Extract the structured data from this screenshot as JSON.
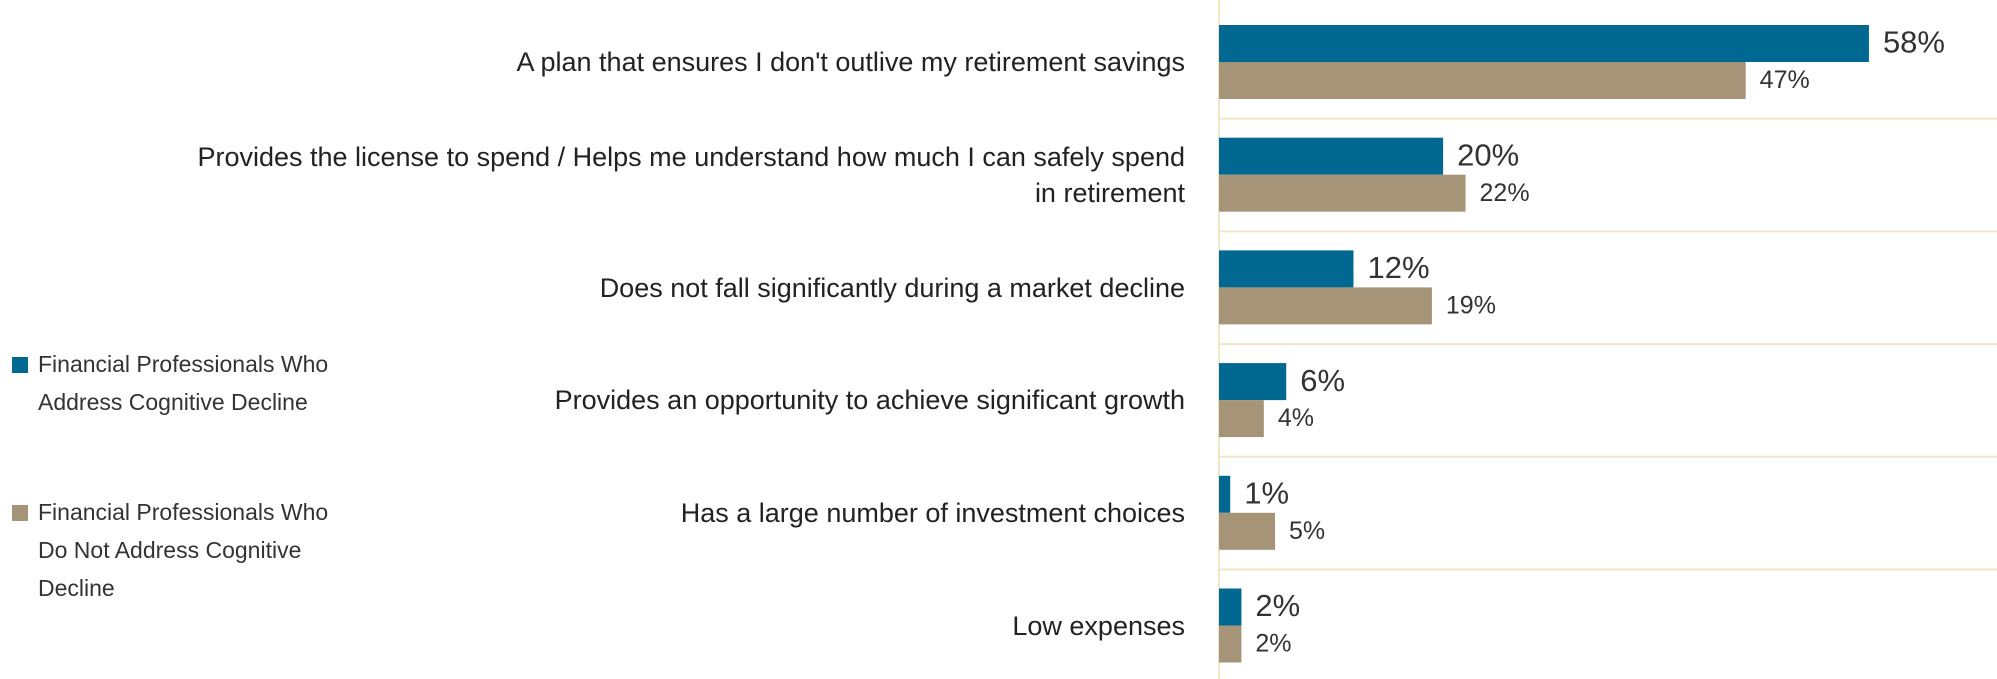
{
  "chart_data": {
    "type": "bar",
    "orientation": "horizontal",
    "categories": [
      "A plan that ensures I don't outlive my retirement savings",
      "Provides the license to spend / Helps me understand how much I can safely spend in retirement",
      "Does not fall significantly during a market decline",
      "Provides an opportunity to achieve significant growth",
      "Has a large number of investment choices",
      "Low expenses"
    ],
    "series": [
      {
        "name": "Financial Professionals Who Address Cognitive Decline",
        "color": "#006891",
        "values": [
          58,
          20,
          12,
          6,
          1,
          2
        ],
        "value_labels": [
          "58%",
          "20%",
          "12%",
          "6%",
          "1%",
          "2%"
        ]
      },
      {
        "name": "Financial Professionals Who Do Not Address Cognitive Decline",
        "color": "#a69479",
        "values": [
          47,
          22,
          19,
          4,
          5,
          2
        ],
        "value_labels": [
          "47%",
          "22%",
          "19%",
          "4%",
          "5%",
          "2%"
        ]
      }
    ],
    "xlim": [
      0,
      68
    ],
    "legend": "left"
  }
}
